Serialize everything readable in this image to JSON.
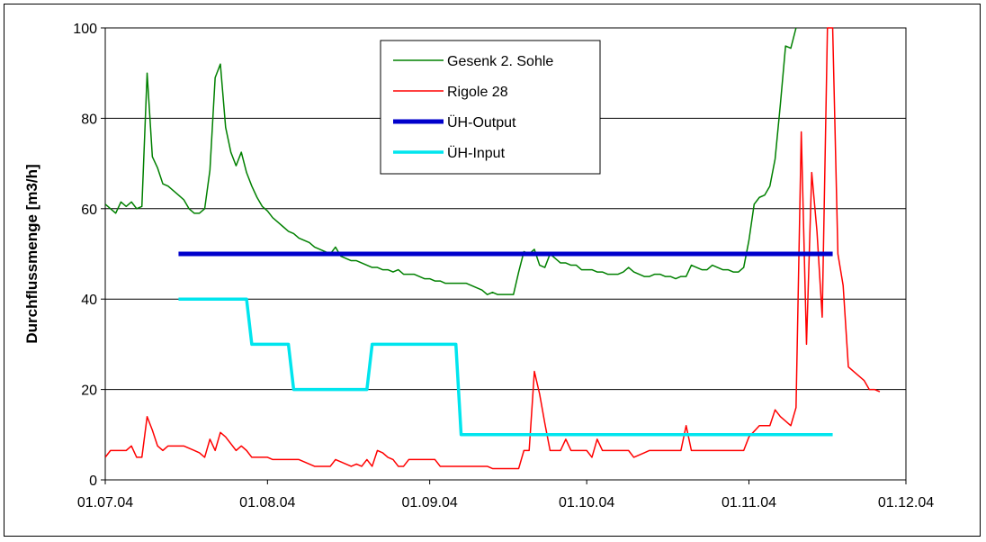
{
  "chart_data": {
    "type": "line",
    "title": "",
    "xlabel": "",
    "ylabel": "Durchflussmenge [m3/h]",
    "xlim": [
      "2004-07-01",
      "2004-12-01"
    ],
    "ylim": [
      0,
      100
    ],
    "grid": "horizontal",
    "legend": "top-center",
    "x_ticks": [
      "01.07.04",
      "01.08.04",
      "01.09.04",
      "01.10.04",
      "01.11.04",
      "01.12.04"
    ],
    "y_ticks": [
      "0",
      "20",
      "40",
      "60",
      "80",
      "100"
    ],
    "series": [
      {
        "name": "Gesenk 2. Sohle",
        "color": "#008000",
        "width": 1.5,
        "points": [
          [
            "2004-07-01",
            61
          ],
          [
            "2004-07-02",
            60
          ],
          [
            "2004-07-03",
            59
          ],
          [
            "2004-07-04",
            61.5
          ],
          [
            "2004-07-05",
            60.5
          ],
          [
            "2004-07-06",
            61.5
          ],
          [
            "2004-07-07",
            60
          ],
          [
            "2004-07-08",
            60.5
          ],
          [
            "2004-07-09",
            90
          ],
          [
            "2004-07-10",
            71.5
          ],
          [
            "2004-07-11",
            69
          ],
          [
            "2004-07-12",
            65.5
          ],
          [
            "2004-07-13",
            65
          ],
          [
            "2004-07-14",
            64
          ],
          [
            "2004-07-15",
            63
          ],
          [
            "2004-07-16",
            62
          ],
          [
            "2004-07-17",
            60
          ],
          [
            "2004-07-18",
            59
          ],
          [
            "2004-07-19",
            59
          ],
          [
            "2004-07-20",
            60
          ],
          [
            "2004-07-21",
            68.5
          ],
          [
            "2004-07-22",
            89
          ],
          [
            "2004-07-23",
            92
          ],
          [
            "2004-07-24",
            78
          ],
          [
            "2004-07-25",
            72.5
          ],
          [
            "2004-07-26",
            69.5
          ],
          [
            "2004-07-27",
            72.5
          ],
          [
            "2004-07-28",
            68
          ],
          [
            "2004-07-29",
            65
          ],
          [
            "2004-07-30",
            62.5
          ],
          [
            "2004-07-31",
            60.5
          ],
          [
            "2004-08-01",
            59.5
          ],
          [
            "2004-08-02",
            58
          ],
          [
            "2004-08-03",
            57
          ],
          [
            "2004-08-04",
            56
          ],
          [
            "2004-08-05",
            55
          ],
          [
            "2004-08-06",
            54.5
          ],
          [
            "2004-08-07",
            53.5
          ],
          [
            "2004-08-08",
            53
          ],
          [
            "2004-08-09",
            52.5
          ],
          [
            "2004-08-10",
            51.5
          ],
          [
            "2004-08-11",
            51
          ],
          [
            "2004-08-12",
            50.5
          ],
          [
            "2004-08-13",
            50
          ],
          [
            "2004-08-14",
            51.5
          ],
          [
            "2004-08-15",
            49.5
          ],
          [
            "2004-08-16",
            49
          ],
          [
            "2004-08-17",
            48.5
          ],
          [
            "2004-08-18",
            48.5
          ],
          [
            "2004-08-19",
            48
          ],
          [
            "2004-08-20",
            47.5
          ],
          [
            "2004-08-21",
            47
          ],
          [
            "2004-08-22",
            47
          ],
          [
            "2004-08-23",
            46.5
          ],
          [
            "2004-08-24",
            46.5
          ],
          [
            "2004-08-25",
            46
          ],
          [
            "2004-08-26",
            46.5
          ],
          [
            "2004-08-27",
            45.5
          ],
          [
            "2004-08-28",
            45.5
          ],
          [
            "2004-08-29",
            45.5
          ],
          [
            "2004-08-30",
            45
          ],
          [
            "2004-08-31",
            44.5
          ],
          [
            "2004-09-01",
            44.5
          ],
          [
            "2004-09-02",
            44
          ],
          [
            "2004-09-03",
            44
          ],
          [
            "2004-09-04",
            43.5
          ],
          [
            "2004-09-05",
            43.5
          ],
          [
            "2004-09-06",
            43.5
          ],
          [
            "2004-09-07",
            43.5
          ],
          [
            "2004-09-08",
            43.5
          ],
          [
            "2004-09-09",
            43
          ],
          [
            "2004-09-10",
            42.5
          ],
          [
            "2004-09-11",
            42
          ],
          [
            "2004-09-12",
            41
          ],
          [
            "2004-09-13",
            41.5
          ],
          [
            "2004-09-14",
            41
          ],
          [
            "2004-09-15",
            41
          ],
          [
            "2004-09-16",
            41
          ],
          [
            "2004-09-17",
            41
          ],
          [
            "2004-09-18",
            46
          ],
          [
            "2004-09-19",
            50.5
          ],
          [
            "2004-09-20",
            50
          ],
          [
            "2004-09-21",
            51
          ],
          [
            "2004-09-22",
            47.5
          ],
          [
            "2004-09-23",
            47
          ],
          [
            "2004-09-24",
            50
          ],
          [
            "2004-09-25",
            49
          ],
          [
            "2004-09-26",
            48
          ],
          [
            "2004-09-27",
            48
          ],
          [
            "2004-09-28",
            47.5
          ],
          [
            "2004-09-29",
            47.5
          ],
          [
            "2004-09-30",
            46.5
          ],
          [
            "2004-10-01",
            46.5
          ],
          [
            "2004-10-02",
            46.5
          ],
          [
            "2004-10-03",
            46
          ],
          [
            "2004-10-04",
            46
          ],
          [
            "2004-10-05",
            45.5
          ],
          [
            "2004-10-06",
            45.5
          ],
          [
            "2004-10-07",
            45.5
          ],
          [
            "2004-10-08",
            46
          ],
          [
            "2004-10-09",
            47
          ],
          [
            "2004-10-10",
            46
          ],
          [
            "2004-10-11",
            45.5
          ],
          [
            "2004-10-12",
            45
          ],
          [
            "2004-10-13",
            45
          ],
          [
            "2004-10-14",
            45.5
          ],
          [
            "2004-10-15",
            45.5
          ],
          [
            "2004-10-16",
            45
          ],
          [
            "2004-10-17",
            45
          ],
          [
            "2004-10-18",
            44.5
          ],
          [
            "2004-10-19",
            45
          ],
          [
            "2004-10-20",
            45
          ],
          [
            "2004-10-21",
            47.5
          ],
          [
            "2004-10-22",
            47
          ],
          [
            "2004-10-23",
            46.5
          ],
          [
            "2004-10-24",
            46.5
          ],
          [
            "2004-10-25",
            47.5
          ],
          [
            "2004-10-26",
            47
          ],
          [
            "2004-10-27",
            46.5
          ],
          [
            "2004-10-28",
            46.5
          ],
          [
            "2004-10-29",
            46
          ],
          [
            "2004-10-30",
            46
          ],
          [
            "2004-10-31",
            47
          ],
          [
            "2004-11-01",
            53
          ],
          [
            "2004-11-02",
            61
          ],
          [
            "2004-11-03",
            62.5
          ],
          [
            "2004-11-04",
            63
          ],
          [
            "2004-11-05",
            65
          ],
          [
            "2004-11-06",
            71
          ],
          [
            "2004-11-07",
            83
          ],
          [
            "2004-11-08",
            96
          ],
          [
            "2004-11-09",
            95.5
          ],
          [
            "2004-11-10",
            100
          ]
        ]
      },
      {
        "name": "Rigole 28",
        "color": "#ff0000",
        "width": 1.5,
        "points": [
          [
            "2004-07-01",
            5
          ],
          [
            "2004-07-02",
            6.5
          ],
          [
            "2004-07-03",
            6.5
          ],
          [
            "2004-07-05",
            6.5
          ],
          [
            "2004-07-06",
            7.5
          ],
          [
            "2004-07-07",
            5
          ],
          [
            "2004-07-08",
            5
          ],
          [
            "2004-07-09",
            14
          ],
          [
            "2004-07-10",
            11
          ],
          [
            "2004-07-11",
            7.5
          ],
          [
            "2004-07-12",
            6.5
          ],
          [
            "2004-07-13",
            7.5
          ],
          [
            "2004-07-16",
            7.5
          ],
          [
            "2004-07-17",
            7
          ],
          [
            "2004-07-18",
            6.5
          ],
          [
            "2004-07-19",
            6
          ],
          [
            "2004-07-20",
            5
          ],
          [
            "2004-07-21",
            9
          ],
          [
            "2004-07-22",
            6.5
          ],
          [
            "2004-07-23",
            10.5
          ],
          [
            "2004-07-24",
            9.5
          ],
          [
            "2004-07-25",
            8
          ],
          [
            "2004-07-26",
            6.5
          ],
          [
            "2004-07-27",
            7.5
          ],
          [
            "2004-07-28",
            6.5
          ],
          [
            "2004-07-29",
            5
          ],
          [
            "2004-08-01",
            5
          ],
          [
            "2004-08-02",
            4.5
          ],
          [
            "2004-08-07",
            4.5
          ],
          [
            "2004-08-08",
            4
          ],
          [
            "2004-08-09",
            3.5
          ],
          [
            "2004-08-10",
            3
          ],
          [
            "2004-08-13",
            3
          ],
          [
            "2004-08-14",
            4.5
          ],
          [
            "2004-08-15",
            4
          ],
          [
            "2004-08-16",
            3.5
          ],
          [
            "2004-08-17",
            3
          ],
          [
            "2004-08-18",
            3.5
          ],
          [
            "2004-08-19",
            3
          ],
          [
            "2004-08-20",
            4.5
          ],
          [
            "2004-08-21",
            3
          ],
          [
            "2004-08-22",
            6.5
          ],
          [
            "2004-08-23",
            6
          ],
          [
            "2004-08-24",
            5
          ],
          [
            "2004-08-25",
            4.5
          ],
          [
            "2004-08-26",
            3
          ],
          [
            "2004-08-27",
            3
          ],
          [
            "2004-08-28",
            4.5
          ],
          [
            "2004-09-02",
            4.5
          ],
          [
            "2004-09-03",
            3
          ],
          [
            "2004-09-12",
            3
          ],
          [
            "2004-09-13",
            2.5
          ],
          [
            "2004-09-18",
            2.5
          ],
          [
            "2004-09-19",
            6.5
          ],
          [
            "2004-09-20",
            6.5
          ],
          [
            "2004-09-21",
            24
          ],
          [
            "2004-09-22",
            19
          ],
          [
            "2004-09-23",
            12.5
          ],
          [
            "2004-09-24",
            6.5
          ],
          [
            "2004-09-26",
            6.5
          ],
          [
            "2004-09-27",
            9
          ],
          [
            "2004-09-28",
            6.5
          ],
          [
            "2004-10-01",
            6.5
          ],
          [
            "2004-10-02",
            5
          ],
          [
            "2004-10-03",
            9
          ],
          [
            "2004-10-04",
            6.5
          ],
          [
            "2004-10-09",
            6.5
          ],
          [
            "2004-10-10",
            5
          ],
          [
            "2004-10-12",
            6
          ],
          [
            "2004-10-13",
            6.5
          ],
          [
            "2004-10-19",
            6.5
          ],
          [
            "2004-10-20",
            12
          ],
          [
            "2004-10-21",
            6.5
          ],
          [
            "2004-10-31",
            6.5
          ],
          [
            "2004-11-01",
            9.5
          ],
          [
            "2004-11-03",
            12
          ],
          [
            "2004-11-05",
            12
          ],
          [
            "2004-11-06",
            15.5
          ],
          [
            "2004-11-07",
            14
          ],
          [
            "2004-11-08",
            13
          ],
          [
            "2004-11-09",
            12
          ],
          [
            "2004-11-10",
            16
          ],
          [
            "2004-11-11",
            77
          ],
          [
            "2004-11-12",
            30
          ],
          [
            "2004-11-13",
            68
          ],
          [
            "2004-11-14",
            55
          ],
          [
            "2004-11-15",
            36
          ],
          [
            "2004-11-16",
            100
          ],
          [
            "2004-11-17",
            100
          ],
          [
            "2004-11-18",
            50
          ],
          [
            "2004-11-19",
            43
          ],
          [
            "2004-11-20",
            25
          ],
          [
            "2004-11-21",
            24
          ],
          [
            "2004-11-22",
            23
          ],
          [
            "2004-11-23",
            22
          ],
          [
            "2004-11-24",
            20
          ],
          [
            "2004-11-25",
            20
          ],
          [
            "2004-11-26",
            19.5
          ]
        ]
      },
      {
        "name": "ÜH-Output",
        "color": "#0000cc",
        "width": 5,
        "points": [
          [
            "2004-07-15",
            50
          ],
          [
            "2004-11-17",
            50
          ]
        ]
      },
      {
        "name": "ÜH-Input",
        "color": "#00e5ee",
        "width": 3.5,
        "points": [
          [
            "2004-07-15",
            40
          ],
          [
            "2004-07-28",
            40
          ],
          [
            "2004-07-29",
            30
          ],
          [
            "2004-08-05",
            30
          ],
          [
            "2004-08-06",
            20
          ],
          [
            "2004-08-20",
            20
          ],
          [
            "2004-08-21",
            30
          ],
          [
            "2004-09-06",
            30
          ],
          [
            "2004-09-07",
            10
          ],
          [
            "2004-11-17",
            10
          ]
        ]
      }
    ]
  }
}
